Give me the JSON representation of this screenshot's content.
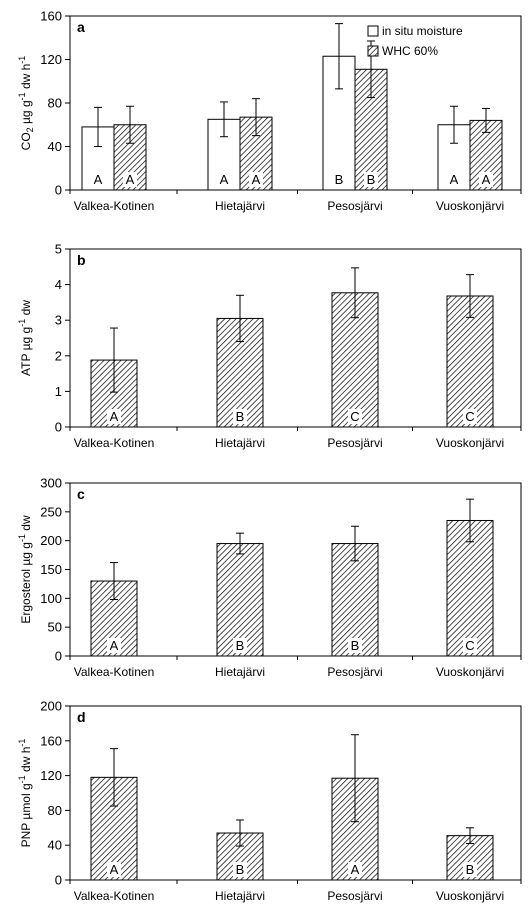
{
  "colors": {
    "axis": "#000000",
    "bar_open": "#ffffff",
    "bar_hatched": "hatch-diagonal"
  },
  "legend": {
    "items": [
      "in situ moisture",
      "WHC 60%"
    ],
    "placement": "top-right of panel a"
  },
  "chart_data": [
    {
      "type": "bar",
      "panel": "a",
      "categories": [
        "Valkea-Kotinen",
        "Hietajärvi",
        "Pesosjärvi",
        "Vuoskonjärvi"
      ],
      "ylabel_parts": [
        "CO",
        "2",
        " µg g",
        "-1",
        " dw h",
        "-1"
      ],
      "ylim": [
        0,
        160
      ],
      "yticks": [
        0,
        40,
        80,
        120,
        160
      ],
      "series": [
        {
          "name": "in situ moisture",
          "style": "open",
          "values": [
            58,
            65,
            123,
            60
          ],
          "errors": [
            18,
            16,
            30,
            17
          ],
          "labels": [
            "A",
            "A",
            "B",
            "A"
          ]
        },
        {
          "name": "WHC 60%",
          "style": "hatched",
          "values": [
            60,
            67,
            111,
            64
          ],
          "errors": [
            17,
            17,
            26,
            11
          ],
          "labels": [
            "A",
            "A",
            "B",
            "A"
          ]
        }
      ]
    },
    {
      "type": "bar",
      "panel": "b",
      "categories": [
        "Valkea-Kotinen",
        "Hietajärvi",
        "Pesosjärvi",
        "Vuoskonjärvi"
      ],
      "ylabel_parts": [
        "ATP µg g",
        "-1",
        " dw"
      ],
      "ylim": [
        0,
        5
      ],
      "yticks": [
        0,
        1,
        2,
        3,
        4,
        5
      ],
      "series": [
        {
          "style": "hatched",
          "values": [
            1.88,
            3.05,
            3.77,
            3.68
          ],
          "errors": [
            0.9,
            0.65,
            0.7,
            0.6
          ],
          "labels": [
            "A",
            "B",
            "C",
            "C"
          ]
        }
      ]
    },
    {
      "type": "bar",
      "panel": "c",
      "categories": [
        "Valkea-Kotinen",
        "Hietajärvi",
        "Pesosjärvi",
        "Vuoskonjärvi"
      ],
      "ylabel_parts": [
        "Ergosterol µg g",
        "-1",
        " dw"
      ],
      "ylim": [
        0,
        300
      ],
      "yticks": [
        0,
        50,
        100,
        150,
        200,
        250,
        300
      ],
      "series": [
        {
          "style": "hatched",
          "values": [
            130,
            195,
            195,
            235
          ],
          "errors": [
            32,
            18,
            30,
            37
          ],
          "labels": [
            "A",
            "B",
            "B",
            "C"
          ]
        }
      ]
    },
    {
      "type": "bar",
      "panel": "d",
      "categories": [
        "Valkea-Kotinen",
        "Hietajärvi",
        "Pesosjärvi",
        "Vuoskonjärvi"
      ],
      "ylabel_parts": [
        "PNP µmol g",
        "-1",
        " dw h",
        "-1"
      ],
      "ylim": [
        0,
        200
      ],
      "yticks": [
        0,
        40,
        80,
        120,
        160,
        200
      ],
      "series": [
        {
          "style": "hatched",
          "values": [
            118,
            54,
            117,
            51
          ],
          "errors": [
            33,
            15,
            50,
            9
          ],
          "labels": [
            "A",
            "B",
            "A",
            "B"
          ]
        }
      ]
    }
  ]
}
